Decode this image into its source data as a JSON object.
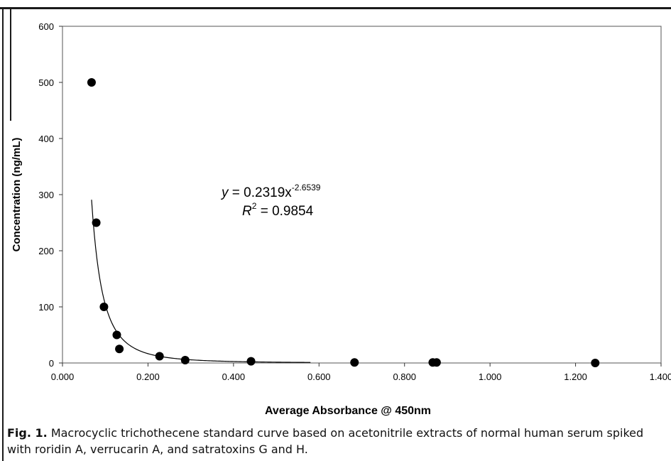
{
  "chart_data": {
    "type": "scatter",
    "title": "",
    "xlabel": "Average Absorbance @ 450nm",
    "ylabel": "Concentration (ng/mL)",
    "xlim": [
      0.0,
      1.4
    ],
    "ylim": [
      0,
      600
    ],
    "x_ticks": [
      "0.000",
      "0.200",
      "0.400",
      "0.600",
      "0.800",
      "1.000",
      "1.200",
      "1.400"
    ],
    "y_ticks": [
      "0",
      "100",
      "200",
      "300",
      "400",
      "500",
      "600"
    ],
    "grid": false,
    "legend": "none",
    "points": [
      {
        "x": 0.068,
        "y": 500
      },
      {
        "x": 0.079,
        "y": 250
      },
      {
        "x": 0.097,
        "y": 100
      },
      {
        "x": 0.127,
        "y": 50
      },
      {
        "x": 0.133,
        "y": 25
      },
      {
        "x": 0.227,
        "y": 12
      },
      {
        "x": 0.287,
        "y": 5
      },
      {
        "x": 0.441,
        "y": 3
      },
      {
        "x": 0.683,
        "y": 1
      },
      {
        "x": 0.866,
        "y": 1
      },
      {
        "x": 0.875,
        "y": 1
      },
      {
        "x": 1.246,
        "y": 0
      }
    ],
    "trendline": {
      "type": "power",
      "coefficient": 0.2319,
      "exponent": -2.6539,
      "x_range": [
        0.068,
        0.58
      ],
      "equation": {
        "lhs": "y",
        "rhs": " = 0.2319x",
        "exponent_text": "-2.6539"
      },
      "r_squared": {
        "lhs": "R",
        "sup": "2",
        "rhs": " = 0.9854"
      }
    },
    "marker_color": "#000000",
    "line_color": "#000000"
  },
  "caption": {
    "label": "Fig. 1.",
    "text": " Macrocyclic trichothecene standard curve based on acetonitrile extracts of normal human serum spiked with roridin A, verrucarin A, and satratoxins G and H."
  }
}
